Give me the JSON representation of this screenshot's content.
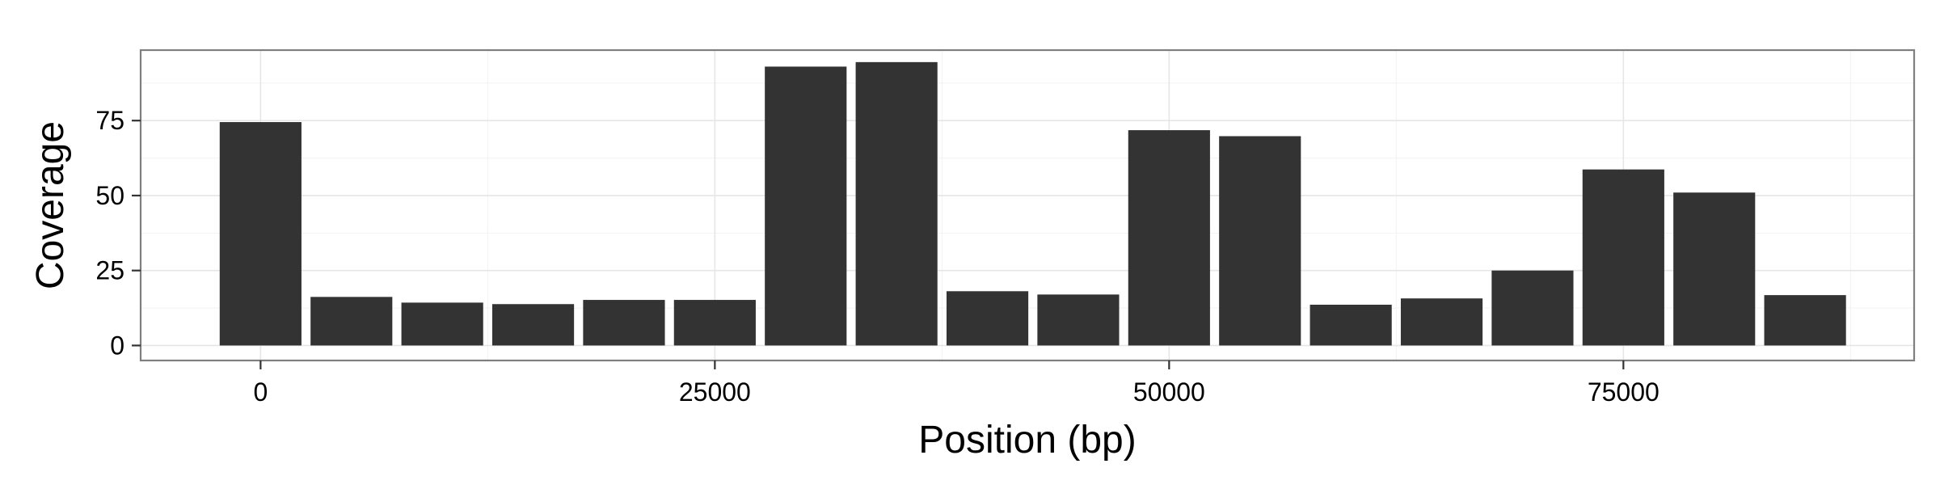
{
  "chart_data": {
    "type": "bar",
    "xlabel": "Position (bp)",
    "ylabel": "Coverage",
    "x_ticks": [
      0,
      25000,
      50000,
      75000
    ],
    "y_ticks": [
      0,
      25,
      50,
      75
    ],
    "x_tick_labels": [
      "0",
      "25000",
      "50000",
      "75000"
    ],
    "y_tick_labels": [
      "0",
      "25",
      "50",
      "75"
    ],
    "xlim": [
      -6600,
      91000
    ],
    "ylim": [
      -5,
      98.5
    ],
    "bin_width": 4500,
    "bins": [
      {
        "x": 0,
        "y": 74.5
      },
      {
        "x": 5000,
        "y": 16.2
      },
      {
        "x": 10000,
        "y": 14.3
      },
      {
        "x": 15000,
        "y": 13.8
      },
      {
        "x": 20000,
        "y": 15.2
      },
      {
        "x": 25000,
        "y": 15.2
      },
      {
        "x": 30000,
        "y": 93.0
      },
      {
        "x": 35000,
        "y": 94.5
      },
      {
        "x": 40000,
        "y": 18.1
      },
      {
        "x": 45000,
        "y": 17.0
      },
      {
        "x": 50000,
        "y": 71.8
      },
      {
        "x": 55000,
        "y": 69.8
      },
      {
        "x": 60000,
        "y": 13.6
      },
      {
        "x": 65000,
        "y": 15.7
      },
      {
        "x": 70000,
        "y": 25.0
      },
      {
        "x": 75000,
        "y": 58.7
      },
      {
        "x": 80000,
        "y": 51.0
      },
      {
        "x": 85000,
        "y": 16.8
      }
    ],
    "grid": true,
    "bar_color": "#333333",
    "panel_border_color": "#7f7f7f"
  }
}
